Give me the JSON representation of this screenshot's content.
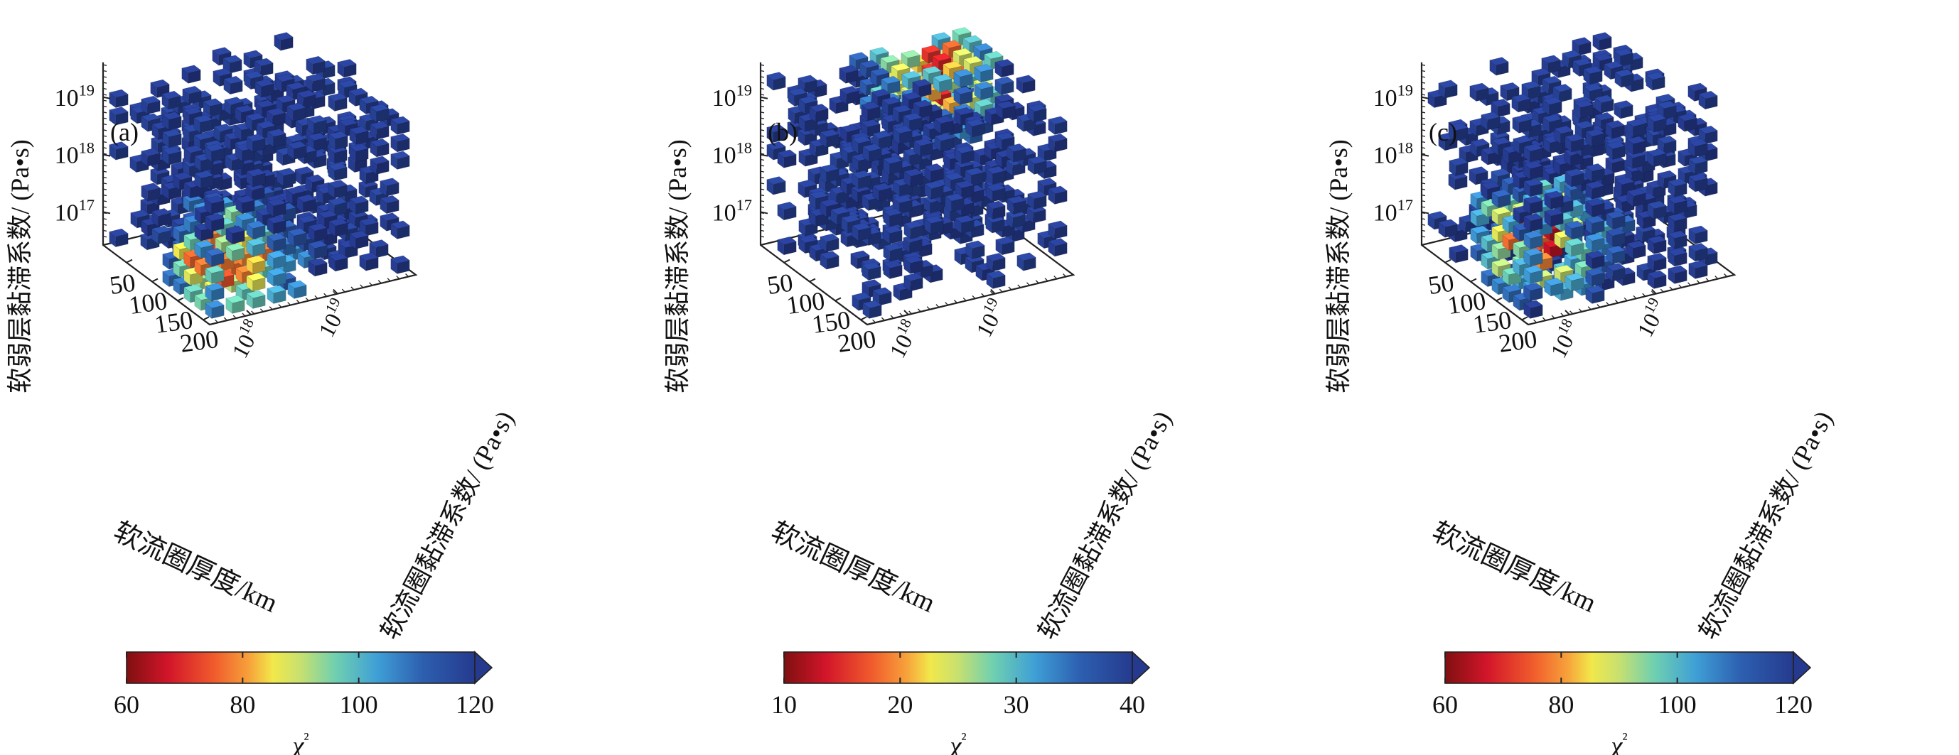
{
  "chart_data": [
    {
      "type": "scatter",
      "panel_label": "(a)",
      "zlabel": "软弱层黏滞系数/ (Pa•s)",
      "xlabel": "软流圈厚度/km",
      "ylabel": "软流圈黏滞系数/ (Pa•s)",
      "x_ticks": [
        "50",
        "100",
        "150",
        "200"
      ],
      "y_ticks": [
        "10^18",
        "10^19"
      ],
      "z_ticks": [
        "10^17",
        "10^18",
        "10^19"
      ],
      "colorbar": {
        "label": "χ²",
        "ticks": [
          "60",
          "80",
          "100",
          "120"
        ],
        "range": [
          60,
          120
        ],
        "extend": "max",
        "colormap": "jet_r"
      },
      "grid_shape": [
        10,
        10,
        10
      ],
      "best_fit_region": {
        "x_frac": 0.78,
        "y_frac": 0.2,
        "z_frac": 0.2
      },
      "misfit_min": 60,
      "seed": 11
    },
    {
      "type": "scatter",
      "panel_label": "(b)",
      "zlabel": "软弱层黏滞系数/ (Pa•s)",
      "xlabel": "软流圈厚度/km",
      "ylabel": "软流圈黏滞系数/ (Pa•s)",
      "x_ticks": [
        "50",
        "100",
        "150",
        "200"
      ],
      "y_ticks": [
        "10^18",
        "10^19"
      ],
      "z_ticks": [
        "10^17",
        "10^18",
        "10^19"
      ],
      "colorbar": {
        "label": "χ²",
        "ticks": [
          "10",
          "20",
          "30",
          "40"
        ],
        "range": [
          10,
          40
        ],
        "extend": "max",
        "colormap": "jet_r"
      },
      "grid_shape": [
        10,
        10,
        10
      ],
      "best_fit_region": {
        "x_frac": 0.2,
        "y_frac": 0.75,
        "z_frac": 0.85
      },
      "misfit_min": 10,
      "seed": 29
    },
    {
      "type": "scatter",
      "panel_label": "(c)",
      "zlabel": "软弱层黏滞系数/ (Pa•s)",
      "xlabel": "软流圈厚度/km",
      "ylabel": "软流圈黏滞系数/ (Pa•s)",
      "x_ticks": [
        "50",
        "100",
        "150",
        "200"
      ],
      "y_ticks": [
        "10^18",
        "10^19"
      ],
      "z_ticks": [
        "10^17",
        "10^18",
        "10^19"
      ],
      "colorbar": {
        "label": "χ²",
        "ticks": [
          "60",
          "80",
          "100",
          "120"
        ],
        "range": [
          60,
          120
        ],
        "extend": "max",
        "colormap": "jet_r"
      },
      "grid_shape": [
        10,
        10,
        10
      ],
      "best_fit_region": {
        "x_frac": 0.7,
        "y_frac": 0.2,
        "z_frac": 0.3
      },
      "misfit_min": 60,
      "seed": 47
    }
  ]
}
